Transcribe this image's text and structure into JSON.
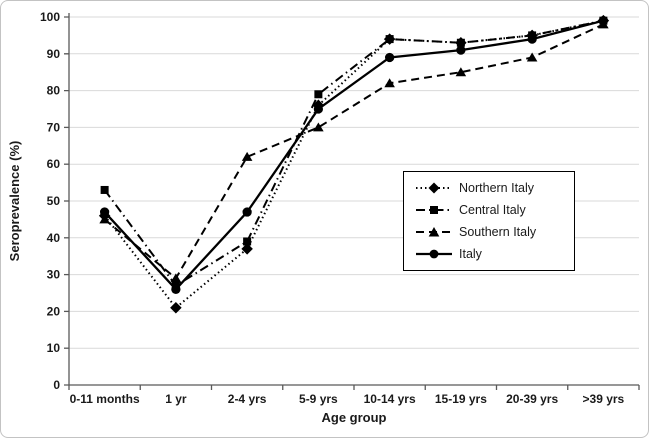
{
  "figure": {
    "background": "#ffffff",
    "border_color": "#c3c3c3"
  },
  "chart_data": {
    "type": "line",
    "title": "",
    "xlabel": "Age group",
    "ylabel": "Seroprevalence (%)",
    "ylim": [
      0,
      100
    ],
    "ytick_interval": 10,
    "yticks": [
      "0",
      "10",
      "20",
      "30",
      "40",
      "50",
      "60",
      "70",
      "80",
      "90",
      "100"
    ],
    "grid": "horizontal gridlines on",
    "grid_color": "#d9d9d9",
    "axis_color": "#595959",
    "text_color": "#1a1a1a",
    "series_color": "#000000",
    "legend_position": "inside right, boxed",
    "categories": [
      "0-11 months",
      "1 yr",
      "2-4 yrs",
      "5-9 yrs",
      "10-14 yrs",
      "15-19 yrs",
      "20-39 yrs",
      ">39 yrs"
    ],
    "series": [
      {
        "name": "Northern Italy",
        "marker": "diamond",
        "line_style": "dotted",
        "dash": "1.5 3",
        "values": [
          46,
          21,
          37,
          76,
          94,
          93,
          95,
          99
        ]
      },
      {
        "name": "Central Italy",
        "marker": "square",
        "line_style": "dash-dot",
        "dash": "9 4 1.5 4",
        "values": [
          53,
          27,
          39,
          79,
          94,
          93,
          95,
          99
        ]
      },
      {
        "name": "Southern Italy",
        "marker": "triangle",
        "line_style": "dashed",
        "dash": "8 5",
        "values": [
          45,
          29,
          62,
          70,
          82,
          85,
          89,
          98
        ]
      },
      {
        "name": "Italy",
        "marker": "circle",
        "line_style": "solid",
        "dash": "",
        "values": [
          47,
          26,
          47,
          75,
          89,
          91,
          94,
          99
        ]
      }
    ]
  }
}
